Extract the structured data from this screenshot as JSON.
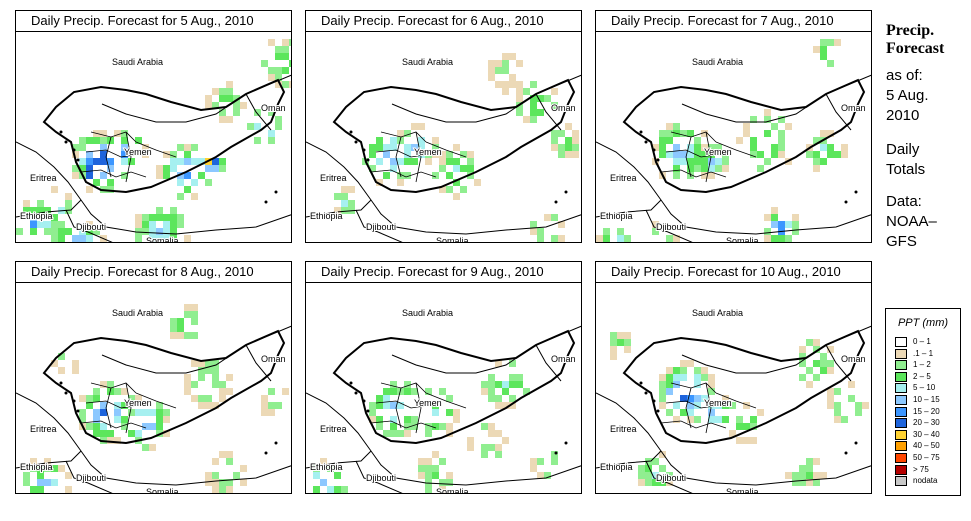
{
  "panels": [
    {
      "title": "Daily Precip. Forecast for  5 Aug., 2010"
    },
    {
      "title": "Daily Precip. Forecast for  6 Aug., 2010"
    },
    {
      "title": "Daily Precip. Forecast for  7 Aug., 2010"
    },
    {
      "title": "Daily Precip. Forecast for  8 Aug., 2010"
    },
    {
      "title": "Daily Precip. Forecast for  9 Aug., 2010"
    },
    {
      "title": "Daily Precip. Forecast for  10 Aug., 2010"
    }
  ],
  "map_labels": {
    "saudi_arabia": "Saudi Arabia",
    "oman": "Oman",
    "yemen": "Yemen",
    "eritrea": "Eritrea",
    "ethiopia": "Ethiopia",
    "djibouti": "Djibouti",
    "somalia": "Somalia"
  },
  "side_info": {
    "heading_line1": "Precip.",
    "heading_line2": "Forecast",
    "asof_line1": "as of:",
    "asof_line2": "5 Aug.",
    "asof_line3": "2010",
    "totals_line1": "Daily",
    "totals_line2": "Totals",
    "data_line1": "Data:",
    "data_line2": "NOAA–",
    "data_line3": "GFS"
  },
  "legend": {
    "title": "PPT (mm)",
    "classes": [
      {
        "label": "0 – 1",
        "color": "#ffffff"
      },
      {
        "label": ".1 – 1",
        "color": "#ecd9b6"
      },
      {
        "label": "1 – 2",
        "color": "#90ee90"
      },
      {
        "label": "2 – 5",
        "color": "#5ce65c"
      },
      {
        "label": "5 – 10",
        "color": "#a6f0f0"
      },
      {
        "label": "10 – 15",
        "color": "#8cc8ff"
      },
      {
        "label": "15 – 20",
        "color": "#3c96ff"
      },
      {
        "label": "20 – 30",
        "color": "#1e64dc"
      },
      {
        "label": "30 – 40",
        "color": "#ffd232"
      },
      {
        "label": "40 – 50",
        "color": "#ffa000"
      },
      {
        "label": "50 – 75",
        "color": "#ff4600"
      },
      {
        "label": "> 75",
        "color": "#b40000"
      },
      {
        "label": "nodata",
        "color": "#c8c8c8"
      }
    ]
  }
}
